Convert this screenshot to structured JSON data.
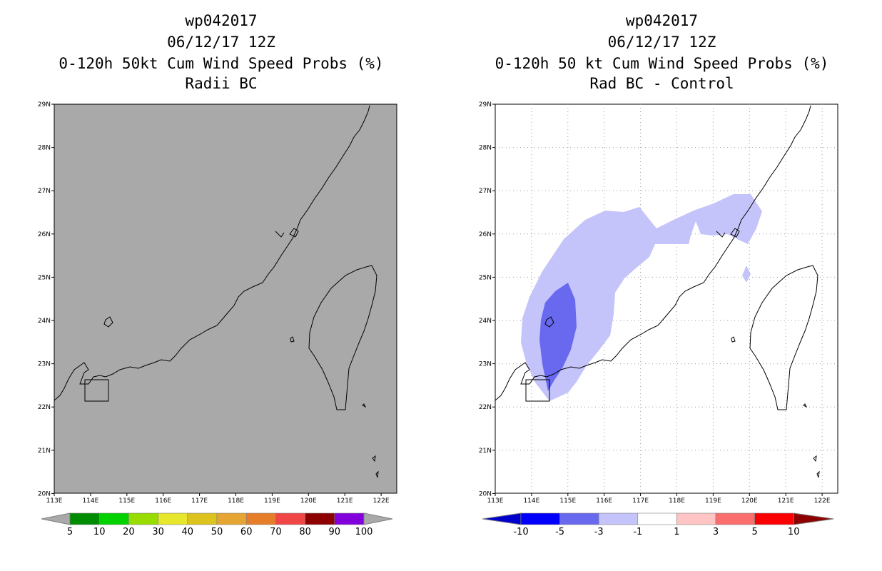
{
  "left": {
    "title": [
      "wp042017",
      "06/12/17 12Z",
      "0-120h 50kt Cum Wind Speed Probs (%)",
      "Radii BC"
    ],
    "lat_labels": [
      "29N",
      "28N",
      "27N",
      "26N",
      "25N",
      "24N",
      "23N",
      "22N",
      "21N",
      "20N"
    ],
    "lon_labels": [
      "113E",
      "114E",
      "115E",
      "116E",
      "117E",
      "118E",
      "119E",
      "120E",
      "121E",
      "122E"
    ],
    "colorbar": {
      "labels": [
        "5",
        "10",
        "20",
        "30",
        "40",
        "50",
        "60",
        "70",
        "80",
        "90",
        "100"
      ],
      "colors": [
        "#008c00",
        "#00d200",
        "#98dc00",
        "#e6e62c",
        "#dcc31e",
        "#e6a532",
        "#e67d28",
        "#f04646",
        "#8c0000",
        "#8200dc"
      ]
    },
    "background": "#a9a9a9"
  },
  "right": {
    "title": [
      "wp042017",
      "06/12/17 12Z",
      "0-120h 50 kt Cum Wind Speed Probs (%)",
      "Rad BC - Control"
    ],
    "lat_labels": [
      "29N",
      "28N",
      "27N",
      "26N",
      "25N",
      "24N",
      "23N",
      "22N",
      "21N",
      "20N"
    ],
    "lon_labels": [
      "113E",
      "114E",
      "115E",
      "116E",
      "117E",
      "118E",
      "119E",
      "120E",
      "121E",
      "122E"
    ],
    "colorbar": {
      "labels": [
        "-10",
        "-5",
        "-3",
        "-1",
        "1",
        "3",
        "5",
        "10"
      ],
      "colors": [
        "#0000cd",
        "#0000fa",
        "#6969f0",
        "#c4c4fa",
        "#ffffff",
        "#ffc4c4",
        "#fa6e6e",
        "#fa0000",
        "#8c0000"
      ]
    },
    "shade_colors": {
      "light": "#c4c4fa",
      "medium": "#6969f0"
    }
  }
}
